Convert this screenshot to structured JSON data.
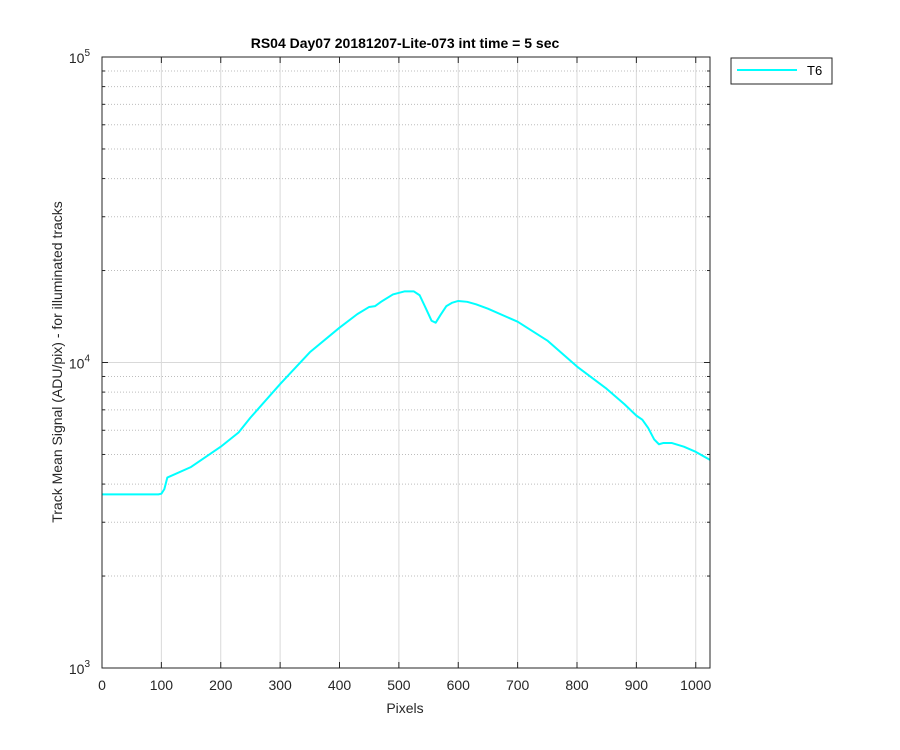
{
  "chart_data": {
    "type": "line",
    "title": "RS04 Day07 20181207-Lite-073 int time = 5 sec",
    "xlabel": "Pixels",
    "ylabel": "Track Mean Signal (ADU/pix) - for illuminated tracks",
    "xlim": [
      0,
      1024
    ],
    "ylim": [
      1000,
      100000
    ],
    "yscale": "log",
    "xticks": [
      0,
      100,
      200,
      300,
      400,
      500,
      600,
      700,
      800,
      900,
      1000
    ],
    "xtick_labels": [
      "0",
      "100",
      "200",
      "300",
      "400",
      "500",
      "600",
      "700",
      "800",
      "900",
      "1000"
    ],
    "yticks": [
      {
        "base": "10",
        "exp": "3",
        "value": 1000
      },
      {
        "base": "10",
        "exp": "4",
        "value": 10000
      },
      {
        "base": "10",
        "exp": "5",
        "value": 100000
      }
    ],
    "grid": true,
    "minor_grid": true,
    "legend": {
      "location": "outside-top-right"
    },
    "series": [
      {
        "name": "T6",
        "color": "#00ffff",
        "x": [
          0,
          50,
          95,
          100,
          105,
          110,
          150,
          200,
          230,
          250,
          300,
          350,
          400,
          430,
          450,
          460,
          470,
          490,
          510,
          525,
          535,
          545,
          555,
          562,
          570,
          580,
          590,
          600,
          615,
          630,
          650,
          700,
          750,
          800,
          850,
          880,
          900,
          910,
          920,
          930,
          938,
          945,
          960,
          980,
          1000,
          1024
        ],
        "y": [
          3700,
          3700,
          3700,
          3720,
          3850,
          4200,
          4550,
          5300,
          5900,
          6600,
          8500,
          10800,
          13000,
          14400,
          15200,
          15300,
          15800,
          16700,
          17100,
          17100,
          16600,
          15100,
          13700,
          13500,
          14300,
          15300,
          15700,
          15900,
          15800,
          15500,
          15000,
          13600,
          11800,
          9700,
          8200,
          7300,
          6700,
          6500,
          6100,
          5600,
          5400,
          5450,
          5450,
          5300,
          5100,
          4800
        ]
      }
    ]
  }
}
